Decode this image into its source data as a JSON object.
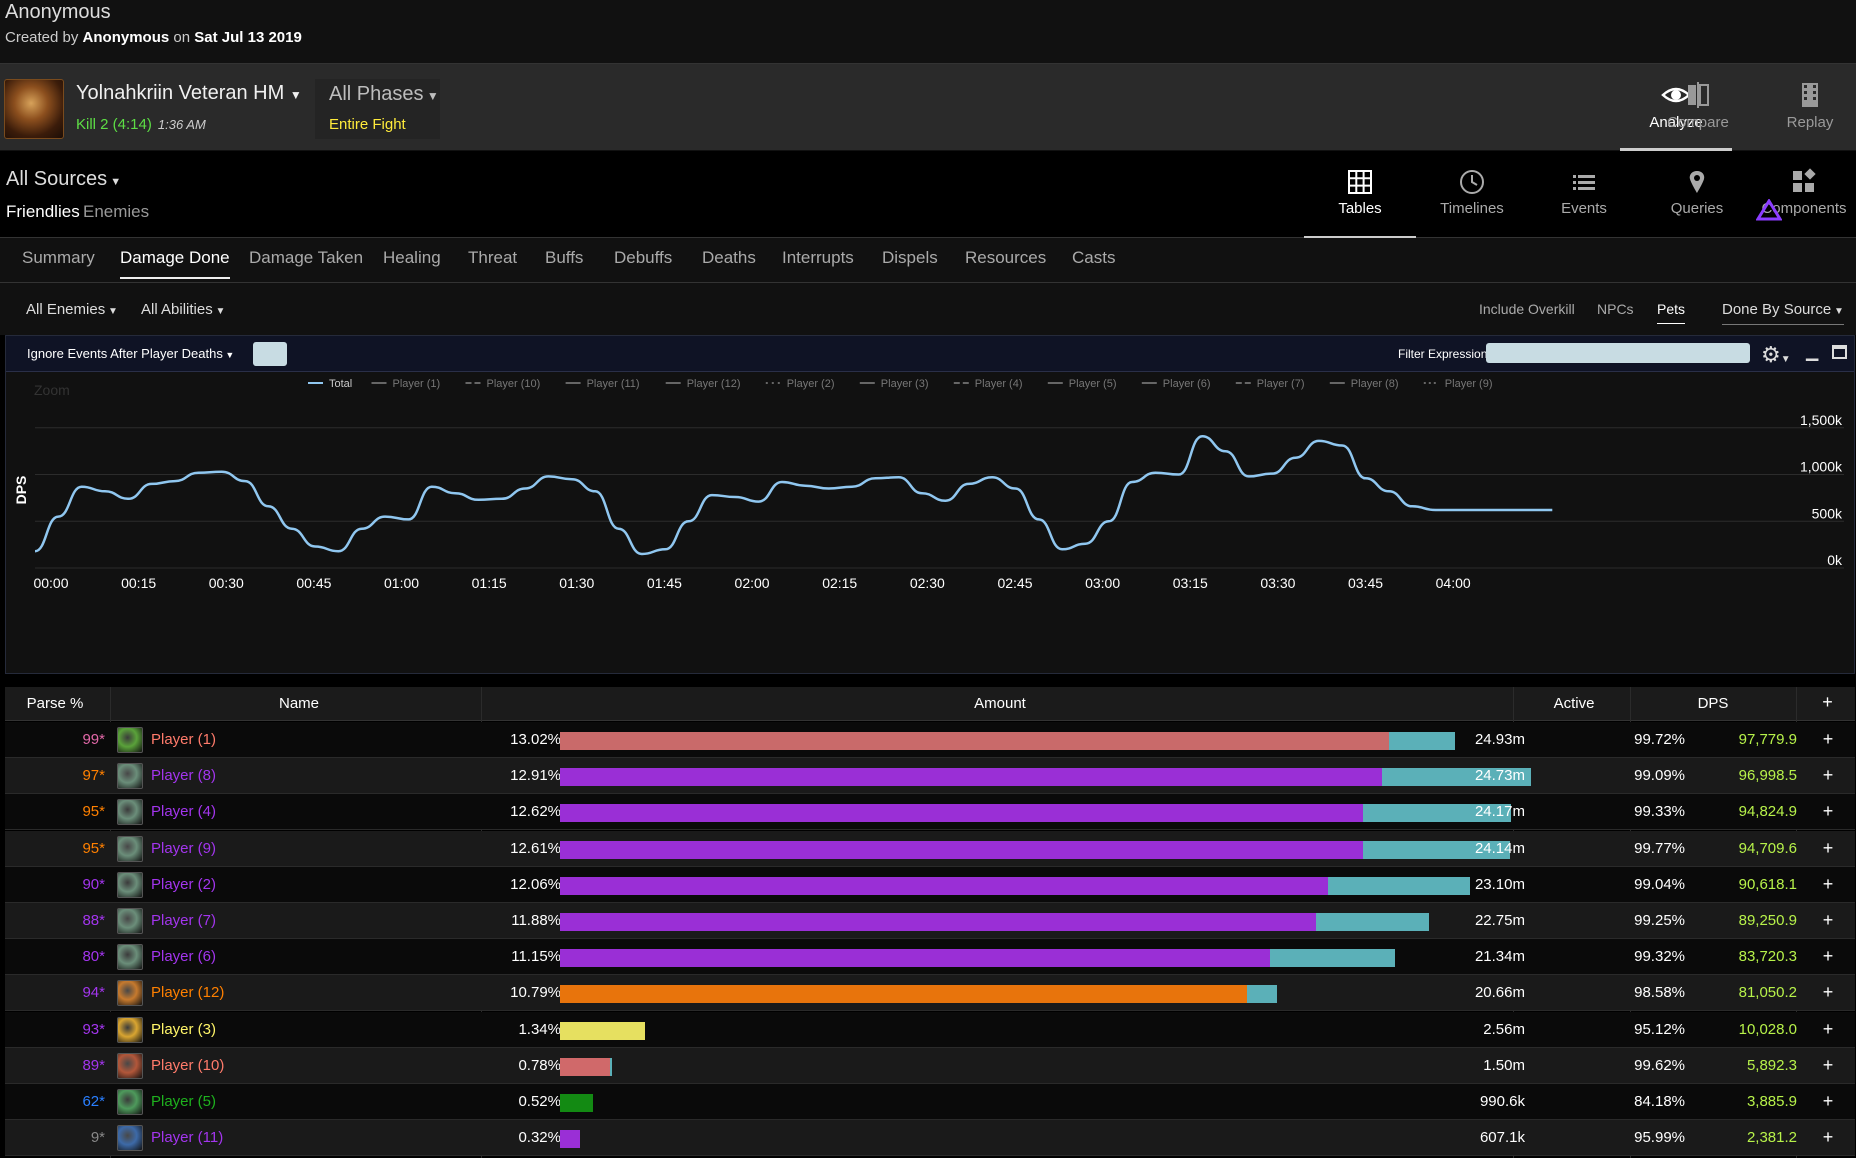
{
  "report": {
    "title": "Anonymous",
    "created_prefix": "Created by",
    "author": "Anonymous",
    "on": "on",
    "date": "Sat Jul 13 2019"
  },
  "fight": {
    "boss": "Yolnahkriin Veteran HM",
    "kill": "Kill 2 (4:14)",
    "time": "1:36 AM",
    "phase": "All Phases",
    "phase_sub": "Entire Fight"
  },
  "topnav": [
    {
      "label": "Analyze",
      "icon": "eye-icon"
    },
    {
      "label": "Compare",
      "icon": "compare-icon"
    },
    {
      "label": "Replay",
      "icon": "film-icon"
    }
  ],
  "sources": {
    "label": "All Sources",
    "friendlies": "Friendlies",
    "enemies": "Enemies"
  },
  "subnav": [
    {
      "label": "Tables",
      "icon": "grid-icon"
    },
    {
      "label": "Timelines",
      "icon": "clock-icon"
    },
    {
      "label": "Events",
      "icon": "list-icon"
    },
    {
      "label": "Queries",
      "icon": "pin-icon"
    },
    {
      "label": "Components",
      "icon": "components-icon"
    }
  ],
  "tabs": [
    "Summary",
    "Damage Done",
    "Damage Taken",
    "Healing",
    "Threat",
    "Buffs",
    "Debuffs",
    "Deaths",
    "Interrupts",
    "Dispels",
    "Resources",
    "Casts"
  ],
  "filters": {
    "enemies": "All Enemies",
    "abilities": "All Abilities",
    "overkill": "Include Overkill",
    "npcs": "NPCs",
    "pets": "Pets",
    "done_by": "Done By Source"
  },
  "graph": {
    "ignore_events": "Ignore Events After Player Deaths",
    "filter_label": "Filter Expression:",
    "filter_value": "",
    "zoom": "Zoom"
  },
  "chart_data": {
    "type": "line",
    "ylabel": "DPS",
    "ylim": [
      0,
      1500000
    ],
    "yticks": [
      "0k",
      "500k",
      "1,000k",
      "1,500k"
    ],
    "xticks": [
      "00:00",
      "00:15",
      "00:30",
      "00:45",
      "01:00",
      "01:15",
      "01:30",
      "01:45",
      "02:00",
      "02:15",
      "02:30",
      "02:45",
      "03:00",
      "03:15",
      "03:30",
      "03:45",
      "04:00"
    ],
    "legend": [
      "Total",
      "Player (1)",
      "Player (10)",
      "Player (11)",
      "Player (12)",
      "Player (2)",
      "Player (3)",
      "Player (4)",
      "Player (5)",
      "Player (6)",
      "Player (7)",
      "Player (8)",
      "Player (9)"
    ],
    "series": [
      {
        "name": "Total",
        "color": "#90c7f0",
        "x": [
          0,
          4,
          8,
          12,
          16,
          20,
          24,
          28,
          32,
          36,
          40,
          44,
          48,
          52,
          56,
          60,
          64,
          68,
          72,
          76,
          80,
          84,
          88,
          92,
          96,
          100,
          104,
          108,
          112,
          116,
          120,
          124,
          128,
          132,
          136,
          140,
          144,
          148,
          152,
          156,
          160,
          164,
          168,
          172,
          176,
          180,
          184,
          188,
          192,
          196,
          200,
          204,
          208,
          212,
          216,
          220,
          224,
          228,
          232,
          236,
          240,
          244,
          248,
          252,
          256,
          260
        ],
        "values": [
          180000,
          550000,
          870000,
          820000,
          740000,
          900000,
          930000,
          1020000,
          1030000,
          930000,
          660000,
          420000,
          230000,
          180000,
          420000,
          550000,
          520000,
          870000,
          800000,
          730000,
          740000,
          850000,
          980000,
          950000,
          820000,
          420000,
          150000,
          200000,
          500000,
          780000,
          760000,
          710000,
          920000,
          880000,
          850000,
          870000,
          960000,
          970000,
          800000,
          720000,
          900000,
          970000,
          850000,
          520000,
          200000,
          260000,
          500000,
          920000,
          1020000,
          1000000,
          1410000,
          1250000,
          980000,
          1010000,
          1180000,
          1360000,
          1310000,
          960000,
          820000,
          660000,
          620000,
          620000,
          620000,
          620000,
          620000,
          620000
        ]
      }
    ]
  },
  "table": {
    "headers": {
      "parse": "Parse %",
      "name": "Name",
      "amount": "Amount",
      "active": "Active",
      "dps": "DPS",
      "plus": "+"
    },
    "rows": [
      {
        "parse": "99*",
        "parse_color": "#e268a8",
        "name": "Player (1)",
        "name_color": "#ff7b6b",
        "icon_color": "#5aa23a",
        "pct": "13.02%",
        "frac": 0.1302,
        "pet_frac": 0.0105,
        "bar_color": "#c96a6a",
        "amount": "24.93m",
        "active": "99.72%",
        "dps": "97,779.9",
        "plus": "+"
      },
      {
        "parse": "97*",
        "parse_color": "#ff8000",
        "name": "Player (8)",
        "name_color": "#a335ee",
        "icon_color": "#6b8e7a",
        "pct": "12.91%",
        "frac": 0.1291,
        "pet_frac": 0.0235,
        "bar_color": "#9a2fd6",
        "amount": "24.73m",
        "active": "99.09%",
        "dps": "96,998.5",
        "plus": "+"
      },
      {
        "parse": "95*",
        "parse_color": "#ff8000",
        "name": "Player (4)",
        "name_color": "#a335ee",
        "icon_color": "#6b8e7a",
        "pct": "12.62%",
        "frac": 0.1262,
        "pet_frac": 0.0232,
        "bar_color": "#9a2fd6",
        "amount": "24.17m",
        "active": "99.33%",
        "dps": "94,824.9",
        "plus": "+"
      },
      {
        "parse": "95*",
        "parse_color": "#ff8000",
        "name": "Player (9)",
        "name_color": "#a335ee",
        "icon_color": "#6b8e7a",
        "pct": "12.61%",
        "frac": 0.1261,
        "pet_frac": 0.0232,
        "bar_color": "#9a2fd6",
        "amount": "24.14m",
        "active": "99.77%",
        "dps": "94,709.6",
        "plus": "+"
      },
      {
        "parse": "90*",
        "parse_color": "#a335ee",
        "name": "Player (2)",
        "name_color": "#a335ee",
        "icon_color": "#6b8e7a",
        "pct": "12.06%",
        "frac": 0.1206,
        "pet_frac": 0.0224,
        "bar_color": "#9a2fd6",
        "amount": "23.10m",
        "active": "99.04%",
        "dps": "90,618.1",
        "plus": "+"
      },
      {
        "parse": "88*",
        "parse_color": "#a335ee",
        "name": "Player (7)",
        "name_color": "#a335ee",
        "icon_color": "#6b8e7a",
        "pct": "11.88%",
        "frac": 0.1188,
        "pet_frac": 0.0178,
        "bar_color": "#9a2fd6",
        "amount": "22.75m",
        "active": "99.25%",
        "dps": "89,250.9",
        "plus": "+"
      },
      {
        "parse": "80*",
        "parse_color": "#a335ee",
        "name": "Player (6)",
        "name_color": "#a335ee",
        "icon_color": "#6b8e7a",
        "pct": "11.15%",
        "frac": 0.1115,
        "pet_frac": 0.0197,
        "bar_color": "#9a2fd6",
        "amount": "21.34m",
        "active": "99.32%",
        "dps": "83,720.3",
        "plus": "+"
      },
      {
        "parse": "94*",
        "parse_color": "#a335ee",
        "name": "Player (12)",
        "name_color": "#ff8000",
        "icon_color": "#c67a2e",
        "pct": "10.79%",
        "frac": 0.1079,
        "pet_frac": 0.0048,
        "bar_color": "#e8740c",
        "amount": "20.66m",
        "active": "98.58%",
        "dps": "81,050.2",
        "plus": "+"
      },
      {
        "parse": "93*",
        "parse_color": "#a335ee",
        "name": "Player (3)",
        "name_color": "#fff569",
        "icon_color": "#d9a531",
        "pct": "1.34%",
        "frac": 0.0134,
        "pet_frac": 0,
        "bar_color": "#e6e060",
        "amount": "2.56m",
        "active": "95.12%",
        "dps": "10,028.0",
        "plus": "+"
      },
      {
        "parse": "89*",
        "parse_color": "#a335ee",
        "name": "Player (10)",
        "name_color": "#ff7b6b",
        "icon_color": "#b2573a",
        "pct": "0.78%",
        "frac": 0.0078,
        "pet_frac": 0.0003,
        "bar_color": "#d0696a",
        "amount": "1.50m",
        "active": "99.62%",
        "dps": "5,892.3",
        "plus": "+"
      },
      {
        "parse": "62*",
        "parse_color": "#2a7fff",
        "name": "Player (5)",
        "name_color": "#1eb11e",
        "icon_color": "#4e9a5c",
        "pct": "0.52%",
        "frac": 0.0052,
        "pet_frac": 0,
        "bar_color": "#138a13",
        "amount": "990.6k",
        "active": "84.18%",
        "dps": "3,885.9",
        "plus": "+"
      },
      {
        "parse": "9*",
        "parse_color": "#888888",
        "name": "Player (11)",
        "name_color": "#a335ee",
        "icon_color": "#3d6aa8",
        "pct": "0.32%",
        "frac": 0.0032,
        "pet_frac": 0,
        "bar_color": "#9a2fd6",
        "amount": "607.1k",
        "active": "95.99%",
        "dps": "2,381.2",
        "plus": "+"
      }
    ]
  }
}
